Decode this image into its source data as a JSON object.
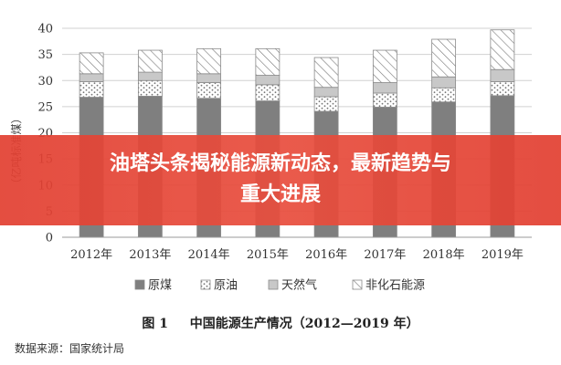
{
  "banner": {
    "line1": "油塔头条揭秘能源新动态，最新趋势与",
    "line2": "重大进展"
  },
  "caption": {
    "fig_no": "图 1",
    "text": "中国能源生产情况（2012—2019 年）"
  },
  "source": "数据来源：国家统计局",
  "chart_data": {
    "type": "bar",
    "stacked": true,
    "categories": [
      "2012年",
      "2013年",
      "2014年",
      "2015年",
      "2016年",
      "2017年",
      "2018年",
      "2019年"
    ],
    "series": [
      {
        "name": "原煤",
        "values": [
          26.8,
          27.0,
          26.6,
          26.1,
          24.1,
          24.9,
          25.9,
          27.1
        ],
        "color": "#7f7f7f",
        "pattern": "solid"
      },
      {
        "name": "原油",
        "values": [
          3.0,
          3.0,
          3.0,
          3.1,
          2.8,
          2.7,
          2.7,
          2.7
        ],
        "color": "#ffffff",
        "pattern": "dots"
      },
      {
        "name": "天然气",
        "values": [
          1.5,
          1.6,
          1.7,
          1.8,
          1.8,
          2.0,
          2.1,
          2.3
        ],
        "color": "#c8c8c8",
        "pattern": "solid"
      },
      {
        "name": "非化石能源",
        "values": [
          4.0,
          4.2,
          4.8,
          5.1,
          5.7,
          6.2,
          7.2,
          7.6
        ],
        "color": "#ffffff",
        "pattern": "hatch"
      }
    ],
    "ylabel": "（亿吨标准煤）",
    "ylim": [
      0,
      40
    ],
    "yticks": [
      0,
      5,
      10,
      15,
      20,
      25,
      30,
      35,
      40
    ],
    "grid": true,
    "legend_position": "bottom"
  }
}
